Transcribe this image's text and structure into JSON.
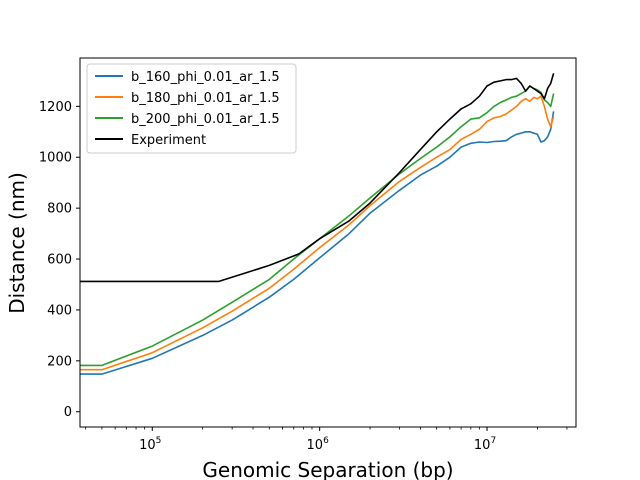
{
  "chart_data": {
    "type": "line",
    "title": "",
    "xlabel": "Genomic Separation (bp)",
    "ylabel": "Distance (nm)",
    "x_scale": "log",
    "xlim": [
      37000,
      34000000
    ],
    "ylim": [
      -60,
      1390
    ],
    "x_ticks": [
      {
        "value": 100000,
        "base": "10",
        "exp": "5"
      },
      {
        "value": 1000000,
        "base": "10",
        "exp": "6"
      },
      {
        "value": 10000000,
        "base": "10",
        "exp": "7"
      }
    ],
    "y_ticks": [
      {
        "value": 0,
        "label": "0"
      },
      {
        "value": 200,
        "label": "200"
      },
      {
        "value": 400,
        "label": "400"
      },
      {
        "value": 600,
        "label": "600"
      },
      {
        "value": 800,
        "label": "800"
      },
      {
        "value": 1000,
        "label": "1000"
      },
      {
        "value": 1200,
        "label": "1200"
      }
    ],
    "grid": false,
    "legend_position": "top-left",
    "series": [
      {
        "name": "b_160_phi_0.01_ar_1.5",
        "color": "#1f77b4",
        "points": [
          [
            37000,
            148
          ],
          [
            50000,
            148
          ],
          [
            100000,
            210
          ],
          [
            200000,
            300
          ],
          [
            300000,
            360
          ],
          [
            500000,
            450
          ],
          [
            700000,
            520
          ],
          [
            1000000,
            605
          ],
          [
            1500000,
            700
          ],
          [
            2000000,
            780
          ],
          [
            3000000,
            870
          ],
          [
            4000000,
            930
          ],
          [
            5000000,
            965
          ],
          [
            6000000,
            1000
          ],
          [
            7000000,
            1040
          ],
          [
            8000000,
            1055
          ],
          [
            9000000,
            1060
          ],
          [
            10000000,
            1058
          ],
          [
            11000000,
            1062
          ],
          [
            12000000,
            1063
          ],
          [
            13000000,
            1065
          ],
          [
            14000000,
            1080
          ],
          [
            15000000,
            1090
          ],
          [
            16000000,
            1095
          ],
          [
            17000000,
            1100
          ],
          [
            18000000,
            1100
          ],
          [
            19000000,
            1095
          ],
          [
            20000000,
            1090
          ],
          [
            21000000,
            1060
          ],
          [
            22000000,
            1065
          ],
          [
            23000000,
            1080
          ],
          [
            24000000,
            1110
          ],
          [
            25000000,
            1180
          ]
        ]
      },
      {
        "name": "b_180_phi_0.01_ar_1.5",
        "color": "#ff7f0e",
        "points": [
          [
            37000,
            165
          ],
          [
            50000,
            165
          ],
          [
            100000,
            232
          ],
          [
            200000,
            330
          ],
          [
            300000,
            395
          ],
          [
            500000,
            485
          ],
          [
            700000,
            560
          ],
          [
            1000000,
            645
          ],
          [
            1500000,
            735
          ],
          [
            2000000,
            810
          ],
          [
            3000000,
            905
          ],
          [
            4000000,
            960
          ],
          [
            5000000,
            1000
          ],
          [
            6000000,
            1030
          ],
          [
            7000000,
            1070
          ],
          [
            8000000,
            1090
          ],
          [
            9000000,
            1110
          ],
          [
            10000000,
            1140
          ],
          [
            11000000,
            1155
          ],
          [
            12000000,
            1160
          ],
          [
            13000000,
            1170
          ],
          [
            14000000,
            1185
          ],
          [
            15000000,
            1200
          ],
          [
            16000000,
            1220
          ],
          [
            17000000,
            1230
          ],
          [
            18000000,
            1220
          ],
          [
            19000000,
            1235
          ],
          [
            20000000,
            1230
          ],
          [
            21000000,
            1240
          ],
          [
            22000000,
            1200
          ],
          [
            23000000,
            1150
          ],
          [
            24000000,
            1120
          ],
          [
            25000000,
            1160
          ]
        ]
      },
      {
        "name": "b_200_phi_0.01_ar_1.5",
        "color": "#2ca02c",
        "points": [
          [
            37000,
            182
          ],
          [
            50000,
            182
          ],
          [
            100000,
            258
          ],
          [
            200000,
            360
          ],
          [
            300000,
            430
          ],
          [
            500000,
            520
          ],
          [
            700000,
            600
          ],
          [
            1000000,
            680
          ],
          [
            1500000,
            770
          ],
          [
            2000000,
            840
          ],
          [
            3000000,
            935
          ],
          [
            4000000,
            995
          ],
          [
            5000000,
            1040
          ],
          [
            6000000,
            1080
          ],
          [
            7000000,
            1120
          ],
          [
            8000000,
            1150
          ],
          [
            9000000,
            1155
          ],
          [
            10000000,
            1175
          ],
          [
            11000000,
            1200
          ],
          [
            12000000,
            1215
          ],
          [
            13000000,
            1225
          ],
          [
            14000000,
            1235
          ],
          [
            15000000,
            1240
          ],
          [
            16000000,
            1250
          ],
          [
            17000000,
            1260
          ],
          [
            18000000,
            1280
          ],
          [
            19000000,
            1270
          ],
          [
            20000000,
            1265
          ],
          [
            21000000,
            1255
          ],
          [
            22000000,
            1225
          ],
          [
            23000000,
            1215
          ],
          [
            24000000,
            1200
          ],
          [
            25000000,
            1250
          ]
        ]
      },
      {
        "name": "Experiment",
        "color": "#000000",
        "points": [
          [
            37000,
            512
          ],
          [
            250000,
            512
          ],
          [
            500000,
            575
          ],
          [
            750000,
            620
          ],
          [
            1000000,
            680
          ],
          [
            1500000,
            750
          ],
          [
            2000000,
            820
          ],
          [
            3000000,
            940
          ],
          [
            4000000,
            1030
          ],
          [
            5000000,
            1100
          ],
          [
            6000000,
            1150
          ],
          [
            7000000,
            1190
          ],
          [
            8000000,
            1210
          ],
          [
            9000000,
            1240
          ],
          [
            10000000,
            1280
          ],
          [
            11000000,
            1295
          ],
          [
            12000000,
            1300
          ],
          [
            13000000,
            1305
          ],
          [
            14000000,
            1305
          ],
          [
            15000000,
            1310
          ],
          [
            16000000,
            1290
          ],
          [
            17000000,
            1260
          ],
          [
            18000000,
            1280
          ],
          [
            19000000,
            1270
          ],
          [
            20000000,
            1260
          ],
          [
            21000000,
            1250
          ],
          [
            22000000,
            1230
          ],
          [
            23000000,
            1270
          ],
          [
            24000000,
            1290
          ],
          [
            25000000,
            1330
          ]
        ]
      }
    ]
  }
}
